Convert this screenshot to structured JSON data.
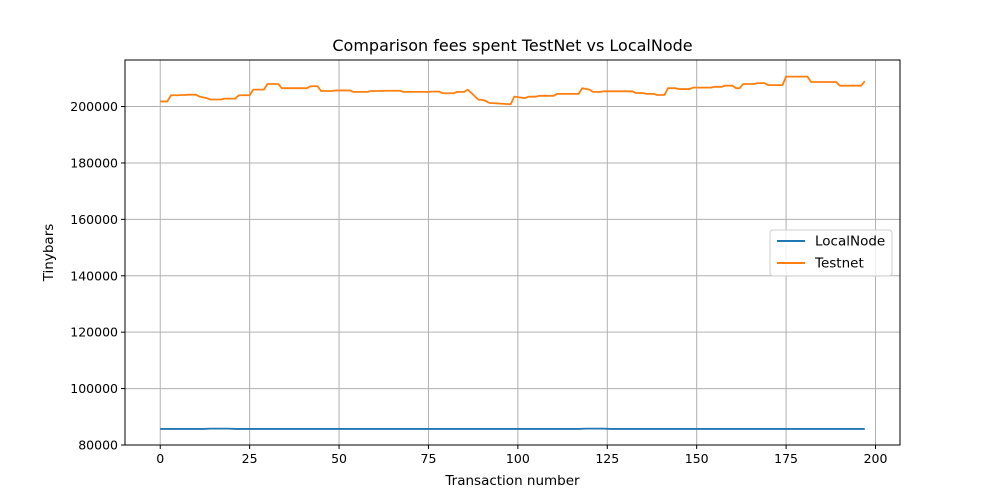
{
  "chart_data": {
    "type": "line",
    "title": "Comparison fees spent TestNet vs LocalNode",
    "xlabel": "Transaction number",
    "ylabel": "Tinybars",
    "xlim": [
      -9.85,
      206.85
    ],
    "ylim": [
      80000,
      216500
    ],
    "xticks": [
      0,
      25,
      50,
      75,
      100,
      125,
      150,
      175,
      200
    ],
    "yticks": [
      80000,
      100000,
      120000,
      140000,
      160000,
      180000,
      200000
    ],
    "grid": true,
    "legend_position": "center-right",
    "series": [
      {
        "name": "LocalNode",
        "color": "#1f77b4",
        "x": [
          0,
          12,
          14,
          19,
          21,
          117,
          119,
          124,
          126,
          197
        ],
        "y": [
          85700,
          85700,
          85800,
          85800,
          85700,
          85700,
          85800,
          85800,
          85700,
          85700
        ]
      },
      {
        "name": "Testnet",
        "color": "#ff7f0e",
        "x": [
          0,
          2,
          3,
          5,
          6,
          7,
          8,
          10,
          11,
          13,
          14,
          17,
          18,
          21,
          22,
          25,
          26,
          29,
          30,
          33,
          34,
          41,
          42,
          44,
          45,
          48,
          49,
          53,
          54,
          58,
          59,
          62,
          63,
          67,
          68,
          75,
          76,
          78,
          79,
          82,
          83,
          85,
          86,
          89,
          90,
          91,
          92,
          98,
          99,
          102,
          103,
          105,
          106,
          110,
          111,
          117,
          118,
          120,
          121,
          123,
          124,
          132,
          133,
          135,
          136,
          138,
          139,
          141,
          142,
          144,
          145,
          148,
          149,
          154,
          155,
          157,
          158,
          160,
          161,
          162,
          163,
          166,
          167,
          169,
          170,
          174,
          175,
          181,
          182,
          189,
          190,
          196,
          197
        ],
        "y": [
          201800,
          201800,
          204000,
          204000,
          204100,
          204100,
          204200,
          204200,
          203500,
          203000,
          202500,
          202500,
          202800,
          202800,
          204000,
          204000,
          206000,
          206000,
          208000,
          208000,
          206500,
          206500,
          207200,
          207200,
          205500,
          205500,
          205700,
          205700,
          205200,
          205200,
          205500,
          205500,
          205600,
          205600,
          205200,
          205200,
          205300,
          205300,
          204700,
          204700,
          205200,
          205200,
          206000,
          202400,
          202400,
          202000,
          201300,
          200800,
          203500,
          203000,
          203500,
          203500,
          203800,
          203800,
          204500,
          204500,
          206500,
          206000,
          205200,
          205200,
          205400,
          205400,
          204800,
          204800,
          204500,
          204500,
          204100,
          204100,
          206500,
          206500,
          206200,
          206200,
          206700,
          206700,
          207000,
          207000,
          207400,
          207400,
          206500,
          206500,
          208000,
          208000,
          208300,
          208300,
          207600,
          207600,
          210600,
          210600,
          208700,
          208700,
          207400,
          207400,
          209000
        ]
      }
    ]
  }
}
